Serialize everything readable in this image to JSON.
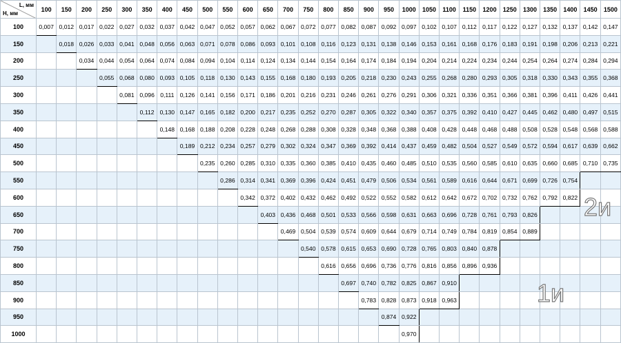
{
  "table": {
    "corner_l": "L, мм",
    "corner_h": "Н, мм",
    "columns": [
      "100",
      "150",
      "200",
      "250",
      "300",
      "350",
      "400",
      "450",
      "500",
      "550",
      "600",
      "650",
      "700",
      "750",
      "800",
      "850",
      "900",
      "950",
      "1000",
      "1050",
      "1100",
      "1150",
      "1200",
      "1250",
      "1300",
      "1350",
      "1400",
      "1450",
      "1500"
    ],
    "rows": [
      {
        "label": "100",
        "cells": [
          "0,007",
          "0,012",
          "0,017",
          "0,022",
          "0,027",
          "0,032",
          "0,037",
          "0,042",
          "0,047",
          "0,052",
          "0,057",
          "0,062",
          "0,067",
          "0,072",
          "0,077",
          "0,082",
          "0,087",
          "0,092",
          "0,097",
          "0,102",
          "0,107",
          "0,112",
          "0,117",
          "0,122",
          "0,127",
          "0,132",
          "0,137",
          "0,142",
          "0,147"
        ]
      },
      {
        "label": "150",
        "cells": [
          null,
          "0,018",
          "0,026",
          "0,033",
          "0,041",
          "0,048",
          "0,056",
          "0,063",
          "0,071",
          "0,078",
          "0,086",
          "0,093",
          "0,101",
          "0,108",
          "0,116",
          "0,123",
          "0,131",
          "0,138",
          "0,146",
          "0,153",
          "0,161",
          "0,168",
          "0,176",
          "0,183",
          "0,191",
          "0,198",
          "0,206",
          "0,213",
          "0,221"
        ]
      },
      {
        "label": "200",
        "cells": [
          null,
          null,
          "0,034",
          "0,044",
          "0,054",
          "0,064",
          "0,074",
          "0,084",
          "0,094",
          "0,104",
          "0,114",
          "0,124",
          "0,134",
          "0,144",
          "0,154",
          "0,164",
          "0,174",
          "0,184",
          "0,194",
          "0,204",
          "0,214",
          "0,224",
          "0,234",
          "0,244",
          "0,254",
          "0,264",
          "0,274",
          "0,284",
          "0,294"
        ]
      },
      {
        "label": "250",
        "cells": [
          null,
          null,
          null,
          "0,055",
          "0,068",
          "0,080",
          "0,093",
          "0,105",
          "0,118",
          "0,130",
          "0,143",
          "0,155",
          "0,168",
          "0,180",
          "0,193",
          "0,205",
          "0,218",
          "0,230",
          "0,243",
          "0,255",
          "0,268",
          "0,280",
          "0,293",
          "0,305",
          "0,318",
          "0,330",
          "0,343",
          "0,355",
          "0,368"
        ]
      },
      {
        "label": "300",
        "cells": [
          null,
          null,
          null,
          null,
          "0,081",
          "0,096",
          "0,111",
          "0,126",
          "0,141",
          "0,156",
          "0,171",
          "0,186",
          "0,201",
          "0,216",
          "0,231",
          "0,246",
          "0,261",
          "0,276",
          "0,291",
          "0,306",
          "0,321",
          "0,336",
          "0,351",
          "0,366",
          "0,381",
          "0,396",
          "0,411",
          "0,426",
          "0,441"
        ]
      },
      {
        "label": "350",
        "cells": [
          null,
          null,
          null,
          null,
          null,
          "0,112",
          "0,130",
          "0,147",
          "0,165",
          "0,182",
          "0,200",
          "0,217",
          "0,235",
          "0,252",
          "0,270",
          "0,287",
          "0,305",
          "0,322",
          "0,340",
          "0,357",
          "0,375",
          "0,392",
          "0,410",
          "0,427",
          "0,445",
          "0,462",
          "0,480",
          "0,497",
          "0,515"
        ]
      },
      {
        "label": "400",
        "cells": [
          null,
          null,
          null,
          null,
          null,
          null,
          "0,148",
          "0,168",
          "0,188",
          "0,208",
          "0,228",
          "0,248",
          "0,268",
          "0,288",
          "0,308",
          "0,328",
          "0,348",
          "0,368",
          "0,388",
          "0,408",
          "0,428",
          "0,448",
          "0,468",
          "0,488",
          "0,508",
          "0,528",
          "0,548",
          "0,568",
          "0,588"
        ]
      },
      {
        "label": "450",
        "cells": [
          null,
          null,
          null,
          null,
          null,
          null,
          null,
          "0,189",
          "0,212",
          "0,234",
          "0,257",
          "0,279",
          "0,302",
          "0,324",
          "0,347",
          "0,369",
          "0,392",
          "0,414",
          "0,437",
          "0,459",
          "0,482",
          "0,504",
          "0,527",
          "0,549",
          "0,572",
          "0,594",
          "0,617",
          "0,639",
          "0,662"
        ]
      },
      {
        "label": "500",
        "cells": [
          null,
          null,
          null,
          null,
          null,
          null,
          null,
          null,
          "0,235",
          "0,260",
          "0,285",
          "0,310",
          "0,335",
          "0,360",
          "0,385",
          "0,410",
          "0,435",
          "0,460",
          "0,485",
          "0,510",
          "0,535",
          "0,560",
          "0,585",
          "0,610",
          "0,635",
          "0,660",
          "0,685",
          "0,710",
          "0,735"
        ]
      },
      {
        "label": "550",
        "cells": [
          null,
          null,
          null,
          null,
          null,
          null,
          null,
          null,
          null,
          "0,286",
          "0,314",
          "0,341",
          "0,369",
          "0,396",
          "0,424",
          "0,451",
          "0,479",
          "0,506",
          "0,534",
          "0,561",
          "0,589",
          "0,616",
          "0,644",
          "0,671",
          "0,699",
          "0,726",
          "0,754",
          null,
          null
        ]
      },
      {
        "label": "600",
        "cells": [
          null,
          null,
          null,
          null,
          null,
          null,
          null,
          null,
          null,
          null,
          "0,342",
          "0,372",
          "0,402",
          "0,432",
          "0,462",
          "0,492",
          "0,522",
          "0,552",
          "0,582",
          "0,612",
          "0,642",
          "0,672",
          "0,702",
          "0,732",
          "0,762",
          "0,792",
          "0,822",
          null,
          null
        ]
      },
      {
        "label": "650",
        "cells": [
          null,
          null,
          null,
          null,
          null,
          null,
          null,
          null,
          null,
          null,
          null,
          "0,403",
          "0,436",
          "0,468",
          "0,501",
          "0,533",
          "0,566",
          "0,598",
          "0,631",
          "0,663",
          "0,696",
          "0,728",
          "0,761",
          "0,793",
          "0,826",
          null,
          null,
          null,
          null
        ]
      },
      {
        "label": "700",
        "cells": [
          null,
          null,
          null,
          null,
          null,
          null,
          null,
          null,
          null,
          null,
          null,
          null,
          "0,469",
          "0,504",
          "0,539",
          "0,574",
          "0,609",
          "0,644",
          "0,679",
          "0,714",
          "0,749",
          "0,784",
          "0,819",
          "0,854",
          "0,889",
          null,
          null,
          null,
          null
        ]
      },
      {
        "label": "750",
        "cells": [
          null,
          null,
          null,
          null,
          null,
          null,
          null,
          null,
          null,
          null,
          null,
          null,
          null,
          "0,540",
          "0,578",
          "0,615",
          "0,653",
          "0,690",
          "0,728",
          "0,765",
          "0,803",
          "0,840",
          "0,878",
          null,
          null,
          null,
          null,
          null,
          null
        ]
      },
      {
        "label": "800",
        "cells": [
          null,
          null,
          null,
          null,
          null,
          null,
          null,
          null,
          null,
          null,
          null,
          null,
          null,
          null,
          "0,616",
          "0,656",
          "0,696",
          "0,736",
          "0,776",
          "0,816",
          "0,856",
          "0,896",
          "0,936",
          null,
          null,
          null,
          null,
          null,
          null
        ]
      },
      {
        "label": "850",
        "cells": [
          null,
          null,
          null,
          null,
          null,
          null,
          null,
          null,
          null,
          null,
          null,
          null,
          null,
          null,
          null,
          "0,697",
          "0,740",
          "0,782",
          "0,825",
          "0,867",
          "0,910",
          null,
          null,
          null,
          null,
          null,
          null,
          null,
          null
        ]
      },
      {
        "label": "900",
        "cells": [
          null,
          null,
          null,
          null,
          null,
          null,
          null,
          null,
          null,
          null,
          null,
          null,
          null,
          null,
          null,
          null,
          "0,783",
          "0,828",
          "0,873",
          "0,918",
          "0,963",
          null,
          null,
          null,
          null,
          null,
          null,
          null,
          null
        ]
      },
      {
        "label": "950",
        "cells": [
          null,
          null,
          null,
          null,
          null,
          null,
          null,
          null,
          null,
          null,
          null,
          null,
          null,
          null,
          null,
          null,
          null,
          "0,874",
          "0,922",
          null,
          null,
          null,
          null,
          null,
          null,
          null,
          null,
          null,
          null
        ]
      },
      {
        "label": "1000",
        "cells": [
          null,
          null,
          null,
          null,
          null,
          null,
          null,
          null,
          null,
          null,
          null,
          null,
          null,
          null,
          null,
          null,
          null,
          null,
          "0,970",
          null,
          null,
          null,
          null,
          null,
          null,
          null,
          null,
          null,
          null
        ]
      }
    ],
    "region_labels": [
      "2и",
      "1и"
    ]
  }
}
